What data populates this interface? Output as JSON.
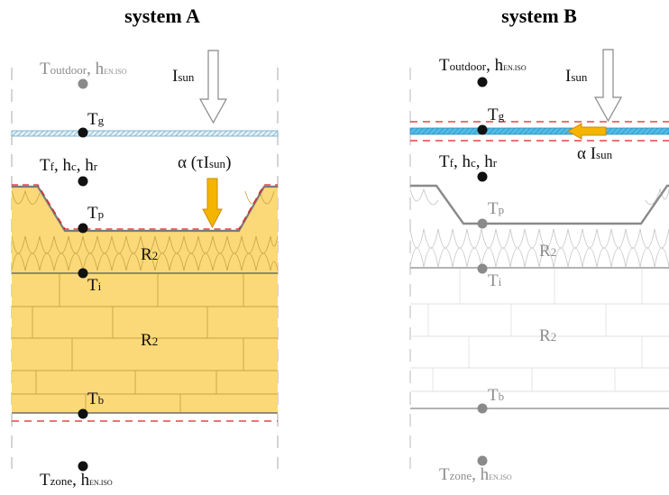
{
  "systems": [
    {
      "title": "system A",
      "labels": {
        "outdoor": "T",
        "outdoor_sub": "outdoor",
        "outdoor_h": ", h",
        "outdoor_h_sub": "EN.ISO",
        "sun": "I",
        "sun_sub": "sun",
        "glass": "T",
        "glass_sub": "g",
        "fluid": "T",
        "fluid_sub": "f",
        "fluid_hc": ", h",
        "fluid_hc_sub": "c",
        "fluid_hr": ", h",
        "fluid_hr_sub": "r",
        "absorbed": "α (τI",
        "absorbed_sub": "sun",
        "absorbed_close": ")",
        "plate": "T",
        "plate_sub": "p",
        "r_insul": "R",
        "r_insul_sub": "2",
        "interface": "T",
        "interface_sub": "i",
        "r_wall": "R",
        "r_wall_sub": "2",
        "bottom": "T",
        "bottom_sub": "b",
        "zone": "T",
        "zone_sub": "zone",
        "zone_h": ", h",
        "zone_h_sub": "EN.ISO"
      }
    },
    {
      "title": "system B",
      "labels": {
        "outdoor": "T",
        "outdoor_sub": "outdoor",
        "outdoor_h": ", h",
        "outdoor_h_sub": "EN.ISO",
        "sun": "I",
        "sun_sub": "sun",
        "glass": "T",
        "glass_sub": "g",
        "absorbed": "α I",
        "absorbed_sub": "sun",
        "fluid": "T",
        "fluid_sub": "f",
        "fluid_hc": ", h",
        "fluid_hc_sub": "c",
        "fluid_hr": ", h",
        "fluid_hr_sub": "r",
        "plate": "T",
        "plate_sub": "p",
        "r_insul": "R",
        "r_insul_sub": "2",
        "interface": "T",
        "interface_sub": "i",
        "r_wall": "R",
        "r_wall_sub": "2",
        "bottom": "T",
        "bottom_sub": "b",
        "zone": "T",
        "zone_sub": "zone",
        "zone_h": ", h",
        "zone_h_sub": "EN.ISO"
      }
    }
  ],
  "colors": {
    "black": "#111111",
    "grey": "#8c8c8c",
    "fill_yellow": "#fbd978",
    "insul_line": "#c9a640",
    "brick_line": "#c8a445",
    "red_dash": "#e02020",
    "glass_blue": "#4db9e6",
    "glass_light": "#d8ecf4",
    "arrow_orange": "#f4b400",
    "node_dark": "#111111",
    "node_grey": "#8a8a8a"
  }
}
